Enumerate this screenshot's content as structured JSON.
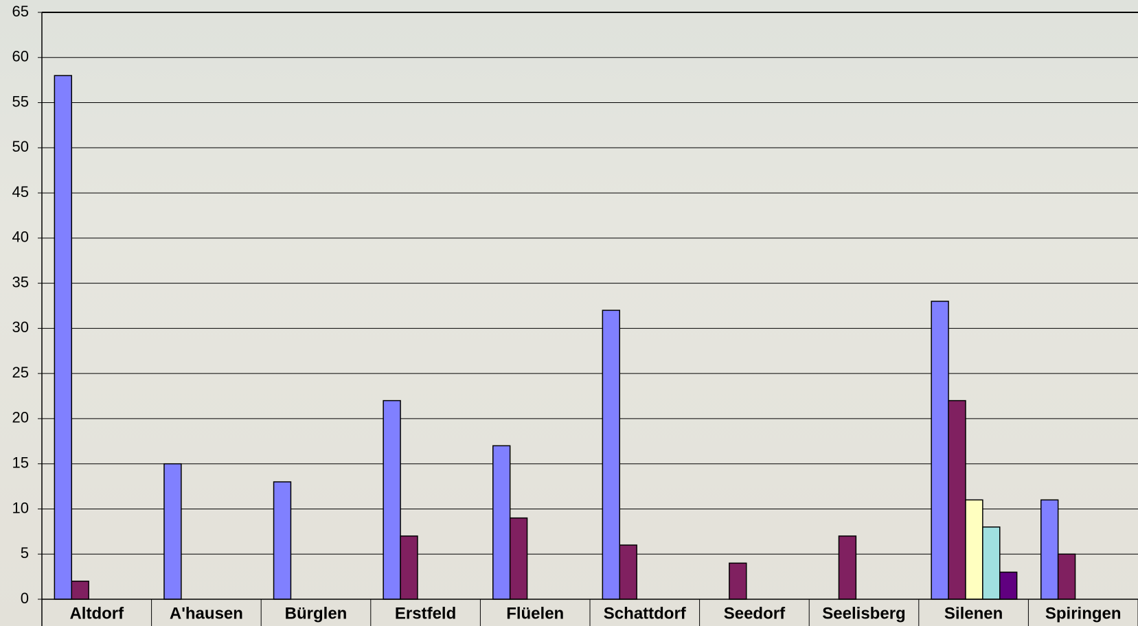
{
  "chart_data": {
    "type": "bar",
    "categories": [
      "Altdorf",
      "A'hausen",
      "Bürglen",
      "Erstfeld",
      "Flüelen",
      "Schattdorf",
      "Seedorf",
      "Seelisberg",
      "Silenen",
      "Spiringen"
    ],
    "series": [
      {
        "color": "#8080ff",
        "values": [
          58,
          15,
          13,
          22,
          17,
          32,
          null,
          null,
          33,
          11
        ]
      },
      {
        "color": "#802060",
        "values": [
          2,
          null,
          null,
          7,
          9,
          6,
          4,
          7,
          22,
          5
        ]
      },
      {
        "color": "#ffffc0",
        "values": [
          null,
          null,
          null,
          null,
          null,
          null,
          null,
          null,
          11,
          null
        ]
      },
      {
        "color": "#a0e0e0",
        "values": [
          null,
          null,
          null,
          null,
          null,
          null,
          null,
          null,
          8,
          null
        ]
      },
      {
        "color": "#600080",
        "values": [
          null,
          null,
          null,
          null,
          null,
          null,
          null,
          null,
          3,
          null
        ]
      }
    ],
    "ylim": [
      0,
      65
    ],
    "yticks": [
      0,
      5,
      10,
      15,
      20,
      25,
      30,
      35,
      40,
      45,
      50,
      55,
      60,
      65
    ],
    "grid": true
  }
}
